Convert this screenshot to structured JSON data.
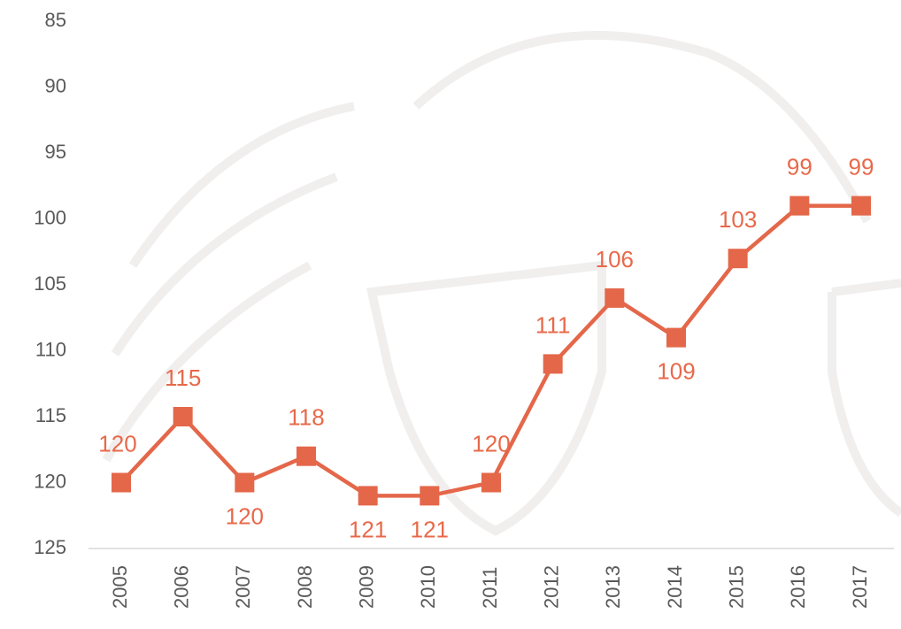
{
  "chart_data": {
    "type": "line",
    "categories": [
      "2005",
      "2006",
      "2007",
      "2008",
      "2009",
      "2010",
      "2011",
      "2012",
      "2013",
      "2014",
      "2015",
      "2016",
      "2017"
    ],
    "values": [
      120,
      115,
      120,
      118,
      121,
      121,
      120,
      111,
      106,
      109,
      103,
      99,
      99
    ],
    "color": "#e4674a",
    "ylim": [
      85,
      125
    ],
    "inverted_y": true,
    "yticks": [
      85,
      90,
      95,
      100,
      105,
      110,
      115,
      120,
      125
    ],
    "grid": false
  }
}
